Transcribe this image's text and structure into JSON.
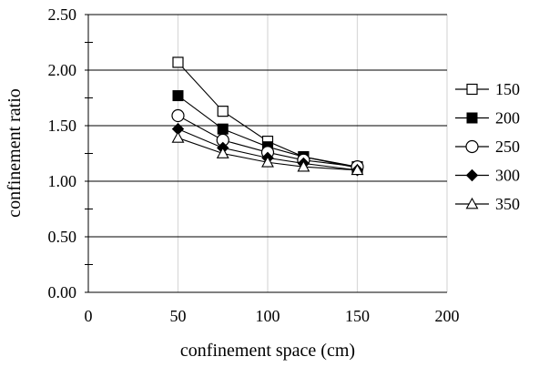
{
  "chart_data": {
    "type": "line",
    "title": "",
    "xlabel": "confinement space (cm)",
    "ylabel": "confinement ratio",
    "xlim": [
      0,
      200
    ],
    "ylim": [
      0,
      2.5
    ],
    "x_ticks": [
      0,
      50,
      100,
      150,
      200
    ],
    "y_ticks": [
      0.0,
      0.5,
      1.0,
      1.5,
      2.0,
      2.5
    ],
    "x_tick_labels": [
      "0",
      "50",
      "100",
      "150",
      "200"
    ],
    "y_tick_labels": [
      "0.00",
      "0.50",
      "1.00",
      "1.50",
      "2.00",
      "2.50"
    ],
    "grid": {
      "horizontal": true,
      "vertical": true
    },
    "legend": "right",
    "x": [
      50,
      75,
      100,
      120,
      150
    ],
    "series": [
      {
        "name": "150",
        "marker": "open-square",
        "values": [
          2.07,
          1.63,
          1.36,
          1.22,
          1.13
        ]
      },
      {
        "name": "200",
        "marker": "filled-square",
        "values": [
          1.77,
          1.47,
          1.31,
          1.22,
          1.12
        ]
      },
      {
        "name": "250",
        "marker": "open-circle",
        "values": [
          1.59,
          1.37,
          1.26,
          1.19,
          1.13
        ]
      },
      {
        "name": "300",
        "marker": "filled-diamond",
        "values": [
          1.47,
          1.3,
          1.21,
          1.16,
          1.1
        ]
      },
      {
        "name": "350",
        "marker": "open-triangle",
        "values": [
          1.39,
          1.25,
          1.17,
          1.13,
          1.1
        ]
      }
    ]
  },
  "colors": {
    "line": "#000000",
    "gridline": "#000000",
    "vertical_gridline": "#d9d9d9",
    "marker_fill": "#000000",
    "marker_open_fill": "#ffffff"
  }
}
